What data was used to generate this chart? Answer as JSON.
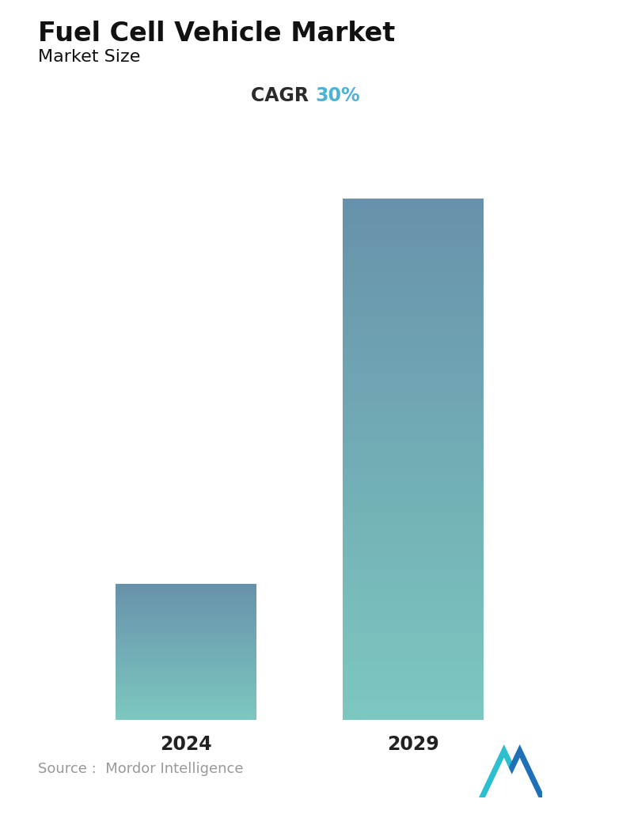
{
  "title": "Fuel Cell Vehicle Market",
  "subtitle": "Market Size",
  "cagr_label": "CAGR",
  "cagr_value": "30%",
  "cagr_label_color": "#2b2b2b",
  "cagr_value_color": "#4db3d4",
  "categories": [
    "2024",
    "2029"
  ],
  "values": [
    1.0,
    3.85
  ],
  "bar_top_colors": [
    "#6892ab",
    "#6892ab"
  ],
  "bar_bottom_colors": [
    "#7dc8c0",
    "#7dc8c0"
  ],
  "source_text": "Source :  Mordor Intelligence",
  "source_color": "#999999",
  "background_color": "#ffffff",
  "title_fontsize": 24,
  "subtitle_fontsize": 16,
  "cagr_fontsize": 17,
  "tick_fontsize": 17,
  "source_fontsize": 13,
  "x_positions": [
    0.25,
    0.67
  ],
  "bar_width": 0.26
}
